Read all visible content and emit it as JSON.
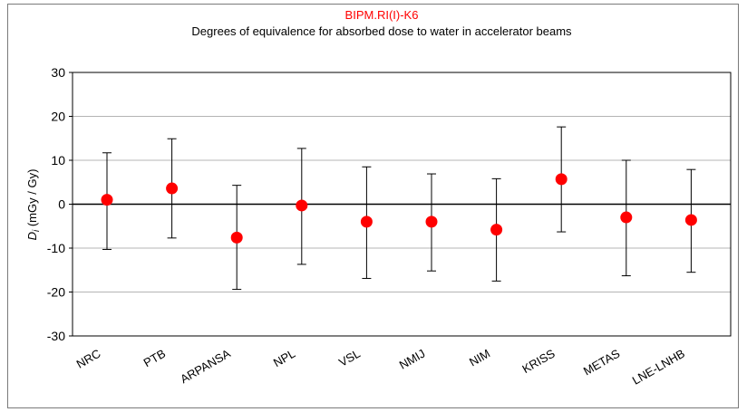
{
  "chart_data": {
    "type": "scatter",
    "title": "BIPM.RI(I)-K6",
    "subtitle": "Degrees of equivalence for absorbed dose to water in accelerator beams",
    "ylabel_main": "D",
    "ylabel_sub": "i",
    "ylabel_units": " (mGy / Gy)",
    "xlabel": "",
    "ylim": [
      -30,
      30
    ],
    "yticks": [
      30,
      20,
      10,
      0,
      -10,
      -20,
      -30
    ],
    "ytick_labels": [
      "30",
      "20",
      "10",
      "0",
      "-10",
      "-20",
      "-30"
    ],
    "grid": true,
    "marker_color": "#ff0000",
    "errorbar_color": "#000000",
    "categories": [
      "NRC",
      "PTB",
      "ARPANSA",
      "NPL",
      "VSL",
      "NMIJ",
      "NIM",
      "KRISS",
      "METAS",
      "LNE-LNHB"
    ],
    "values": [
      1.0,
      3.6,
      -7.6,
      -0.3,
      -4.0,
      -4.0,
      -5.8,
      5.7,
      -3.0,
      -3.6
    ],
    "upper": [
      11.7,
      14.9,
      4.3,
      12.7,
      8.5,
      6.9,
      5.8,
      17.6,
      10.0,
      7.9
    ],
    "lower": [
      -10.3,
      -7.7,
      -19.4,
      -13.7,
      -16.9,
      -15.2,
      -17.5,
      -6.3,
      -16.3,
      -15.5
    ]
  }
}
